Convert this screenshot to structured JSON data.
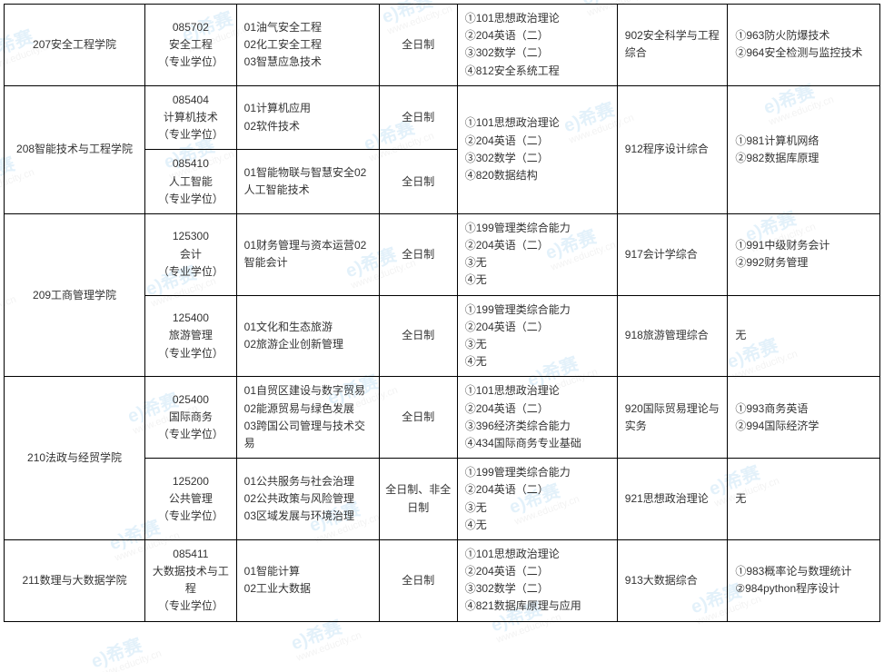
{
  "table": {
    "cellBorderColor": "#000000",
    "fontSize": 12,
    "fontFamily": "Microsoft YaHei, SimSun, Arial",
    "textColor": "#333333",
    "backgroundColor": "#ffffff",
    "colWidthsPx": [
      148,
      96,
      150,
      82,
      168,
      116,
      160
    ],
    "rows": [
      {
        "college": "207安全工程学院",
        "major": "085702\n安全工程\n（专业学位）",
        "direction": "01油气安全工程\n02化工安全工程\n03智慧应急技术",
        "mode": "全日制",
        "exams": "①101思想政治理论\n②204英语（二）\n③302数学（二）\n④812安全系统工程",
        "retest": "902安全科学与工程综合",
        "equiv": "①963防火防爆技术\n②964安全检测与监控技术"
      },
      {
        "college": "208智能技术与工程学院",
        "collegeRowspan": 2,
        "major": "085404\n计算机技术\n（专业学位）",
        "direction": "01计算机应用\n02软件技术",
        "mode": "全日制",
        "exams": "①101思想政治理论\n②204英语（二）\n③302数学（二）\n④820数据结构",
        "examsRowspan": 2,
        "retest": "912程序设计综合",
        "retestRowspan": 2,
        "equiv": "①981计算机网络\n②982数据库原理",
        "equivRowspan": 2
      },
      {
        "major": "085410\n人工智能\n（专业学位）",
        "direction": "01智能物联与智慧安全02人工智能技术",
        "mode": "全日制"
      },
      {
        "college": "209工商管理学院",
        "collegeRowspan": 2,
        "major": "125300\n会计\n（专业学位）",
        "direction": "01财务管理与资本运营02智能会计",
        "mode": "全日制",
        "exams": "①199管理类综合能力\n②204英语（二）\n③无\n④无",
        "retest": "917会计学综合",
        "equiv": "①991中级财务会计\n②992财务管理"
      },
      {
        "major": "125400\n旅游管理\n（专业学位）",
        "direction": "01文化和生态旅游\n02旅游企业创新管理",
        "mode": "全日制",
        "exams": "①199管理类综合能力\n②204英语（二）\n③无\n④无",
        "retest": "918旅游管理综合",
        "equiv": "无"
      },
      {
        "college": "210法政与经贸学院",
        "collegeRowspan": 2,
        "major": "025400\n国际商务\n（专业学位）",
        "direction": "01自贸区建设与数字贸易\n02能源贸易与绿色发展\n03跨国公司管理与技术交易",
        "mode": "全日制",
        "exams": "①101思想政治理论\n②204英语（二）\n③396经济类综合能力\n④434国际商务专业基础",
        "retest": "920国际贸易理论与实务",
        "equiv": "①993商务英语\n②994国际经济学"
      },
      {
        "major": "125200\n公共管理\n（专业学位）",
        "direction": "01公共服务与社会治理\n02公共政策与风险管理\n03区域发展与环境治理",
        "mode": "全日制、非全日制",
        "exams": "①199管理类综合能力\n②204英语（二）\n③无\n④无",
        "retest": "921思想政治理论",
        "equiv": "无"
      },
      {
        "college": "211数理与大数据学院",
        "major": "085411\n大数据技术与工程\n（专业学位）",
        "direction": "01智能计算\n02工业大数据",
        "mode": "全日制",
        "exams": "①101思想政治理论\n②204英语（二）\n③302数学（二）\n④821数据库原理与应用",
        "retest": "913大数据综合",
        "equiv": "①983概率论与数理统计\n②984python程序设计"
      }
    ]
  },
  "watermark": {
    "brandText": "希赛",
    "brandPrefix": "e)",
    "urlText": "www.educity.cn",
    "brandColor": "#6ab7e8",
    "urlColor": "#bdbdbd",
    "opacity": 0.18,
    "rotationDeg": -20,
    "positions": [
      [
        -20,
        30
      ],
      [
        200,
        10
      ],
      [
        420,
        -10
      ],
      [
        640,
        -30
      ],
      [
        860,
        -50
      ],
      [
        -40,
        170
      ],
      [
        180,
        150
      ],
      [
        400,
        130
      ],
      [
        620,
        110
      ],
      [
        840,
        90
      ],
      [
        -60,
        310
      ],
      [
        160,
        290
      ],
      [
        380,
        270
      ],
      [
        600,
        250
      ],
      [
        820,
        230
      ],
      [
        -80,
        450
      ],
      [
        140,
        430
      ],
      [
        360,
        410
      ],
      [
        580,
        390
      ],
      [
        800,
        370
      ],
      [
        -100,
        590
      ],
      [
        120,
        570
      ],
      [
        340,
        550
      ],
      [
        560,
        530
      ],
      [
        780,
        510
      ],
      [
        100,
        700
      ],
      [
        320,
        680
      ],
      [
        540,
        660
      ],
      [
        760,
        640
      ]
    ]
  }
}
